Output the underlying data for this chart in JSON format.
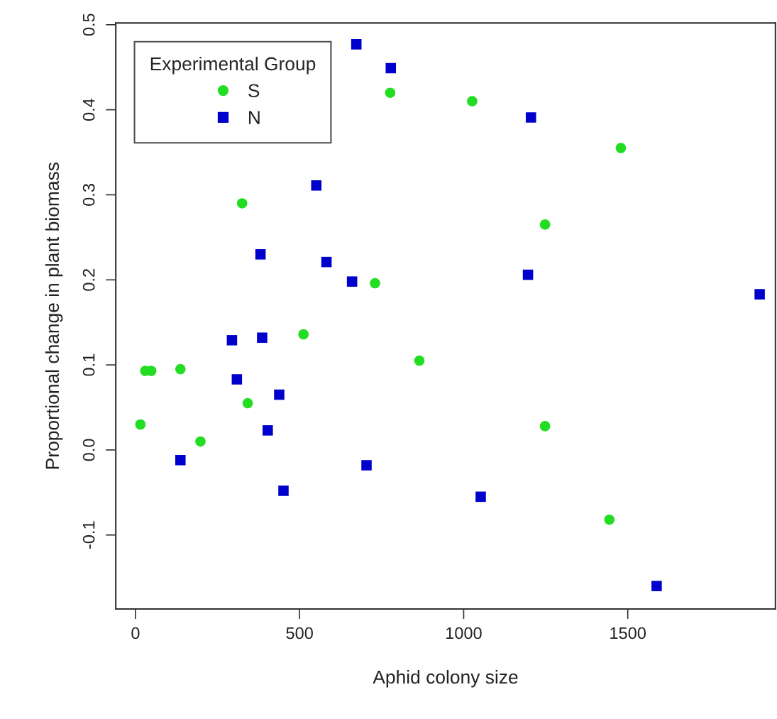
{
  "chart_data": {
    "type": "scatter",
    "xlabel": "Aphid colony size",
    "ylabel": "Proportional change in plant biomass",
    "legend_title": "Experimental Group",
    "legend": "top left",
    "grid": false,
    "xlim": [
      -60,
      1950
    ],
    "xticks": [
      0,
      500,
      1000,
      1500
    ],
    "ylim": [
      -0.187,
      0.502
    ],
    "yticks": [
      -0.1,
      {
        "value": 0.0,
        "label": "0.0"
      },
      0.1,
      0.2,
      0.3,
      0.4,
      0.5
    ],
    "series": [
      {
        "name": "S",
        "color": "#22dd22",
        "marker": "circle",
        "x": [
          15,
          30,
          48,
          137,
          198,
          325,
          342,
          512,
          730,
          776,
          865,
          1026,
          1248,
          1248,
          1444,
          1479
        ],
        "values": [
          0.03,
          0.093,
          0.093,
          0.095,
          0.01,
          0.29,
          0.055,
          0.136,
          0.196,
          0.42,
          0.105,
          0.41,
          0.265,
          0.028,
          -0.082,
          0.355
        ]
      },
      {
        "name": "N",
        "color": "#0000cc",
        "marker": "square",
        "x": [
          137,
          294,
          309,
          381,
          386,
          403,
          438,
          451,
          551,
          582,
          660,
          673,
          704,
          778,
          1052,
          1196,
          1205,
          1588,
          1902
        ],
        "values": [
          -0.012,
          0.129,
          0.083,
          0.23,
          0.132,
          0.023,
          0.065,
          -0.048,
          0.311,
          0.221,
          0.198,
          0.477,
          -0.018,
          0.449,
          -0.055,
          0.206,
          0.391,
          -0.16,
          0.183
        ]
      }
    ]
  }
}
